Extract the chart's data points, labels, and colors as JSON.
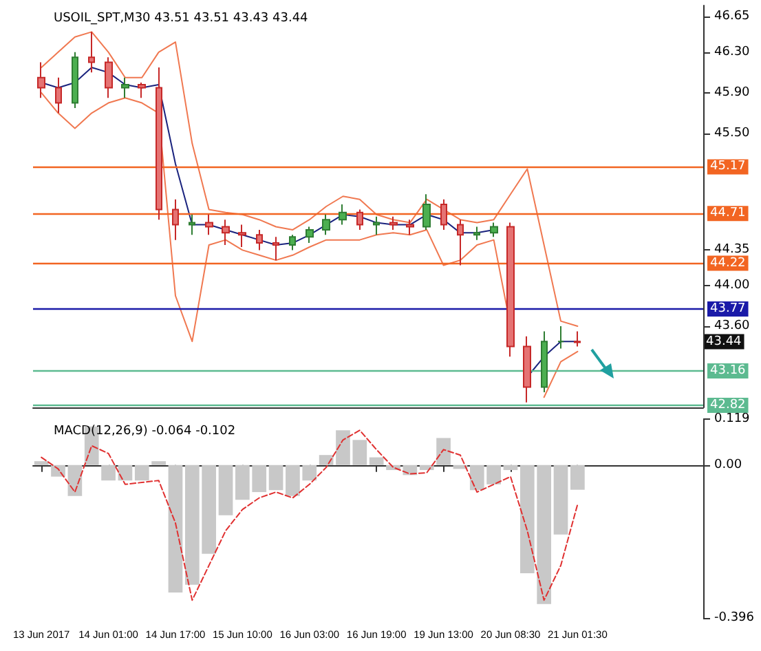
{
  "chart_data": [
    {
      "type": "candlestick",
      "title": "USOIL_SPT,M30 43.51 43.51 43.43 43.44",
      "tick_labels": "y",
      "marker": "none",
      "categories": [
        null,
        null,
        null,
        null,
        null,
        null,
        null,
        null,
        null,
        null,
        null,
        null,
        null,
        null,
        null,
        null,
        null,
        null,
        null,
        null,
        null,
        null,
        null,
        null,
        null,
        null,
        null,
        null,
        null,
        null,
        null,
        null,
        null,
        null,
        null,
        null,
        null,
        null,
        null,
        null
      ],
      "ohlc": [
        [
          46.05,
          46.2,
          45.85,
          45.95
        ],
        [
          45.95,
          46.05,
          45.7,
          45.8
        ],
        [
          45.8,
          46.3,
          45.75,
          46.25
        ],
        [
          46.25,
          46.5,
          46.1,
          46.2
        ],
        [
          46.2,
          46.25,
          45.85,
          45.95
        ],
        [
          45.95,
          46.05,
          45.85,
          45.98
        ],
        [
          45.98,
          46.0,
          45.85,
          45.95
        ],
        [
          45.95,
          46.15,
          44.65,
          44.75
        ],
        [
          44.75,
          44.85,
          44.45,
          44.6
        ],
        [
          44.6,
          44.7,
          44.5,
          44.62
        ],
        [
          44.62,
          44.7,
          44.5,
          44.58
        ],
        [
          44.58,
          44.65,
          44.4,
          44.52
        ],
        [
          44.52,
          44.6,
          44.38,
          44.5
        ],
        [
          44.5,
          44.55,
          44.35,
          44.42
        ],
        [
          44.42,
          44.48,
          44.25,
          44.4
        ],
        [
          44.4,
          44.5,
          44.35,
          44.48
        ],
        [
          44.48,
          44.58,
          44.42,
          44.55
        ],
        [
          44.55,
          44.7,
          44.5,
          44.65
        ],
        [
          44.65,
          44.8,
          44.6,
          44.72
        ],
        [
          44.72,
          44.75,
          44.55,
          44.6
        ],
        [
          44.6,
          44.68,
          44.5,
          44.62
        ],
        [
          44.62,
          44.68,
          44.55,
          44.6
        ],
        [
          44.6,
          44.65,
          44.5,
          44.58
        ],
        [
          44.58,
          44.9,
          44.55,
          44.8
        ],
        [
          44.8,
          44.85,
          44.55,
          44.6
        ],
        [
          44.6,
          44.65,
          44.2,
          44.5
        ],
        [
          44.5,
          44.58,
          44.45,
          44.52
        ],
        [
          44.52,
          44.62,
          44.48,
          44.58
        ],
        [
          44.58,
          44.62,
          43.3,
          43.4
        ],
        [
          43.4,
          43.5,
          42.85,
          43.0
        ],
        [
          43.0,
          43.55,
          42.95,
          43.45
        ],
        [
          43.45,
          43.6,
          43.38,
          43.45
        ],
        [
          43.45,
          43.55,
          43.4,
          43.44
        ],
        null,
        null,
        null,
        null,
        null,
        null,
        null
      ],
      "series": [
        {
          "type": "line",
          "color": "#f07850",
          "values": [
            46.15,
            46.3,
            46.45,
            46.5,
            46.3,
            46.05,
            46.05,
            46.3,
            46.4,
            45.4,
            44.75,
            44.72,
            44.7,
            44.65,
            44.58,
            44.55,
            44.65,
            44.78,
            44.88,
            44.85,
            44.7,
            44.65,
            44.62,
            44.85,
            44.75,
            44.65,
            44.62,
            44.65,
            44.9,
            45.15,
            44.4,
            43.65,
            43.6,
            null,
            null,
            null,
            null,
            null,
            null,
            null
          ]
        },
        {
          "type": "line",
          "color": "#1a237e",
          "values": [
            46.0,
            45.95,
            46.0,
            46.15,
            46.1,
            45.98,
            45.95,
            45.98,
            45.2,
            44.6,
            44.6,
            44.55,
            44.5,
            44.45,
            44.4,
            44.42,
            44.5,
            44.6,
            44.7,
            44.68,
            44.62,
            44.6,
            44.6,
            44.7,
            44.65,
            44.52,
            44.52,
            44.55,
            null,
            43.1,
            43.3,
            43.45,
            43.45,
            null,
            null,
            null,
            null,
            null,
            null,
            null
          ]
        },
        {
          "type": "line",
          "color": "#f07850",
          "values": [
            45.9,
            45.7,
            45.55,
            45.7,
            45.8,
            45.85,
            45.8,
            45.7,
            43.9,
            43.45,
            44.4,
            44.45,
            44.35,
            44.3,
            44.25,
            44.3,
            44.38,
            44.45,
            44.45,
            44.45,
            44.5,
            44.52,
            44.5,
            44.55,
            44.2,
            44.25,
            44.4,
            44.45,
            43.6,
            null,
            42.9,
            43.25,
            43.35,
            null,
            null,
            null,
            null,
            null,
            null,
            null
          ]
        }
      ],
      "ylim": [
        42.8,
        46.76
      ],
      "yticks": [
        {
          "value": 46.65,
          "label": "46.65"
        },
        {
          "value": 46.3,
          "label": "46.30"
        },
        {
          "value": 45.9,
          "label": "45.90"
        },
        {
          "value": 45.5,
          "label": "45.50"
        },
        {
          "value": 44.35,
          "label": "44.35"
        },
        {
          "value": 44.0,
          "label": "44.00"
        },
        {
          "value": 43.6,
          "label": "43.60"
        }
      ],
      "ref_lines": [
        {
          "axis": "y",
          "value": 45.17,
          "label": "45.17",
          "color": "#f26522"
        },
        {
          "axis": "y",
          "value": 44.71,
          "label": "44.71",
          "color": "#f26522"
        },
        {
          "axis": "y",
          "value": 44.22,
          "label": "44.22",
          "color": "#f26522"
        },
        {
          "axis": "y",
          "value": 43.77,
          "label": "43.77",
          "color": "#1a1aa8"
        },
        {
          "axis": "y",
          "value": 43.16,
          "label": "43.16",
          "color": "#5cba90"
        },
        {
          "axis": "y",
          "value": 42.82,
          "label": "42.82",
          "color": "#5cba90"
        }
      ],
      "annotations": [
        {
          "text": "43.44",
          "y": 43.44
        }
      ]
    },
    {
      "type": "bar",
      "title": "MACD(12,26,9) -0.064 -0.102",
      "marker": "none",
      "categories": [
        "13 Jun 2017",
        null,
        null,
        null,
        "14 Jun 01:00",
        null,
        null,
        null,
        "14 Jun 17:00",
        null,
        null,
        null,
        "15 Jun 10:00",
        null,
        null,
        null,
        "16 Jun 03:00",
        null,
        null,
        null,
        "16 Jun 19:00",
        null,
        null,
        null,
        "19 Jun 13:00",
        null,
        null,
        null,
        "20 Jun 08:30",
        null,
        null,
        null,
        "21 Jun 01:30",
        null,
        null,
        null,
        null,
        null,
        null,
        null
      ],
      "series": [
        {
          "type": "bar",
          "color": "#c8c8c8",
          "values": [
            0.01,
            -0.03,
            -0.08,
            0.1,
            -0.04,
            -0.04,
            -0.04,
            0.01,
            -0.33,
            -0.31,
            -0.23,
            -0.13,
            -0.09,
            -0.07,
            -0.065,
            -0.08,
            -0.04,
            0.026,
            0.09,
            0.065,
            0.02,
            -0.013,
            -0.026,
            -0.013,
            0.07,
            -0.01,
            -0.065,
            -0.05,
            -0.013,
            -0.28,
            -0.36,
            -0.18,
            -0.064,
            null,
            null,
            null,
            null,
            null,
            null,
            null
          ]
        },
        {
          "type": "line",
          "color": "#e03030",
          "line_style": "dashed",
          "values": [
            0.02,
            -0.01,
            -0.07,
            0.05,
            0.03,
            -0.05,
            -0.045,
            -0.04,
            -0.15,
            -0.35,
            -0.26,
            -0.17,
            -0.115,
            -0.085,
            -0.07,
            -0.085,
            -0.05,
            -0.006,
            0.065,
            0.09,
            0.04,
            -0.006,
            -0.023,
            -0.02,
            0.04,
            0.026,
            -0.07,
            -0.05,
            -0.03,
            -0.17,
            -0.35,
            -0.26,
            -0.102,
            null,
            null,
            null,
            null,
            null,
            null,
            null
          ]
        }
      ],
      "ylim": [
        -0.396,
        0.119
      ],
      "yticks": [
        {
          "value": 0.119,
          "label": "0.119"
        },
        {
          "value": 0,
          "label": "0.00"
        },
        {
          "value": -0.396,
          "label": "-0.396"
        }
      ]
    }
  ]
}
